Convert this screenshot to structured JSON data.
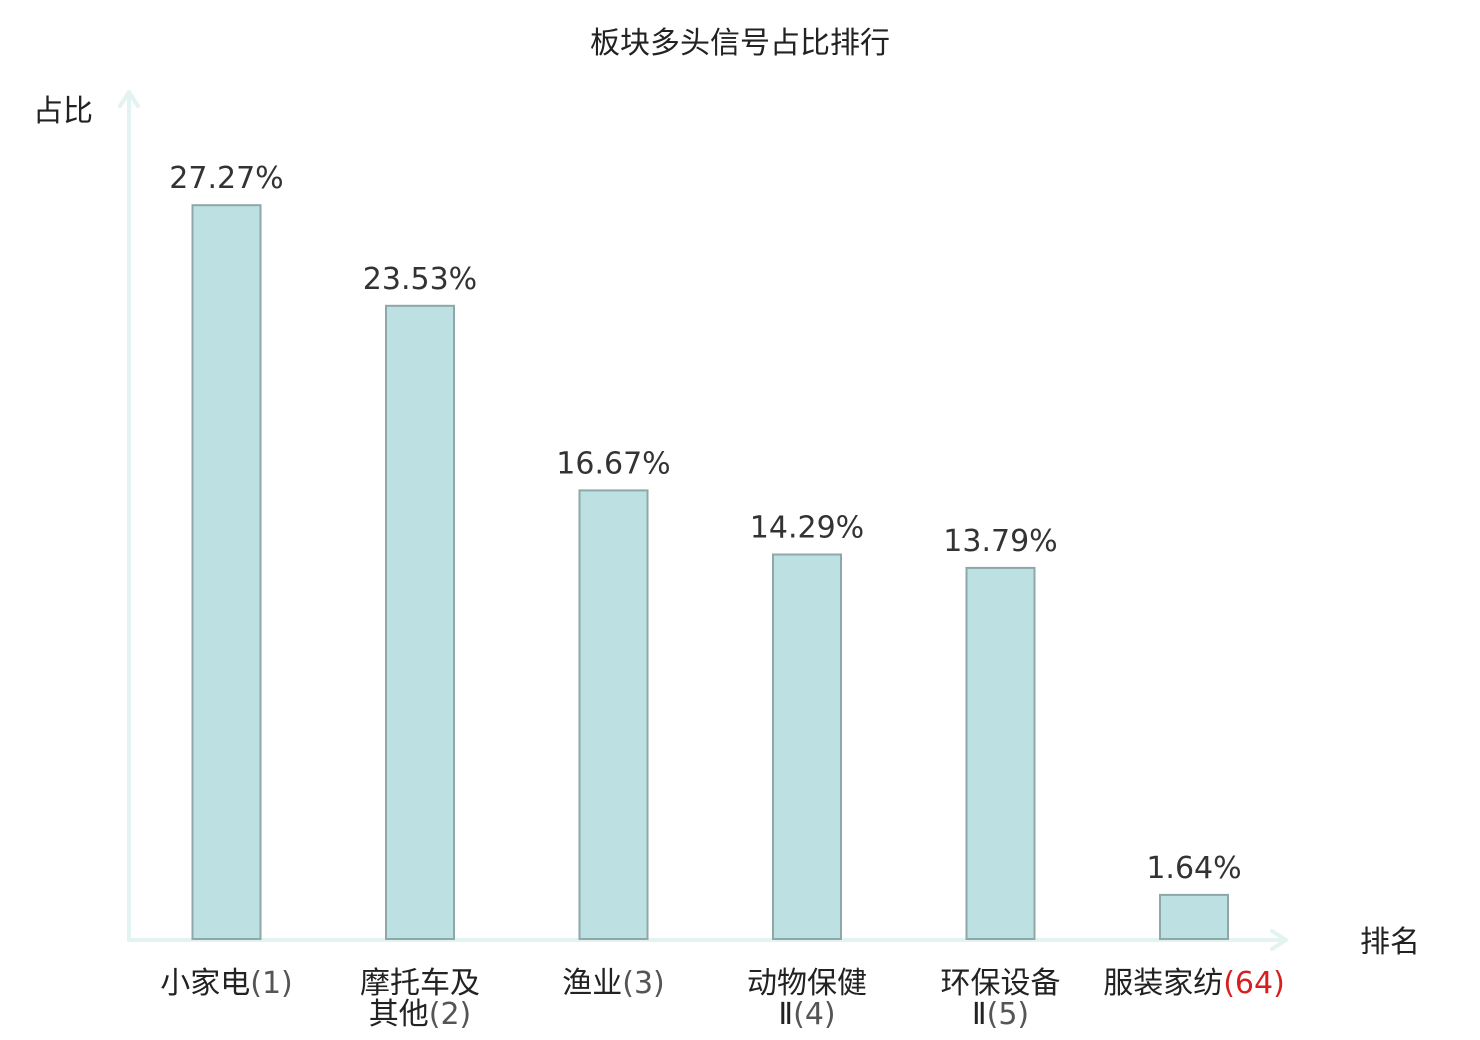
{
  "chart_data": {
    "type": "bar",
    "title": "板块多头信号占比排行",
    "ylabel": "占比",
    "xlabel": "排名",
    "ylim": [
      0,
      30
    ],
    "grid": false,
    "value_suffix": "%",
    "highlight_color": "#d81e1e",
    "bar_color": "#bde1e3",
    "categories": [
      {
        "name_lines": [
          "小家电"
        ],
        "rank": "(1)",
        "value": 27.27,
        "value_label": "27.27%",
        "highlight": false
      },
      {
        "name_lines": [
          "摩托车及",
          "其他"
        ],
        "rank": "(2)",
        "value": 23.53,
        "value_label": "23.53%",
        "highlight": false
      },
      {
        "name_lines": [
          "渔业"
        ],
        "rank": "(3)",
        "value": 16.67,
        "value_label": "16.67%",
        "highlight": false
      },
      {
        "name_lines": [
          "动物保健",
          "Ⅱ"
        ],
        "rank": "(4)",
        "value": 14.29,
        "value_label": "14.29%",
        "highlight": false
      },
      {
        "name_lines": [
          "环保设备",
          "Ⅱ"
        ],
        "rank": "(5)",
        "value": 13.79,
        "value_label": "13.79%",
        "highlight": false
      },
      {
        "name_lines": [
          "服装家纺"
        ],
        "rank": "(64)",
        "value": 1.64,
        "value_label": "1.64%",
        "highlight": true
      }
    ]
  }
}
